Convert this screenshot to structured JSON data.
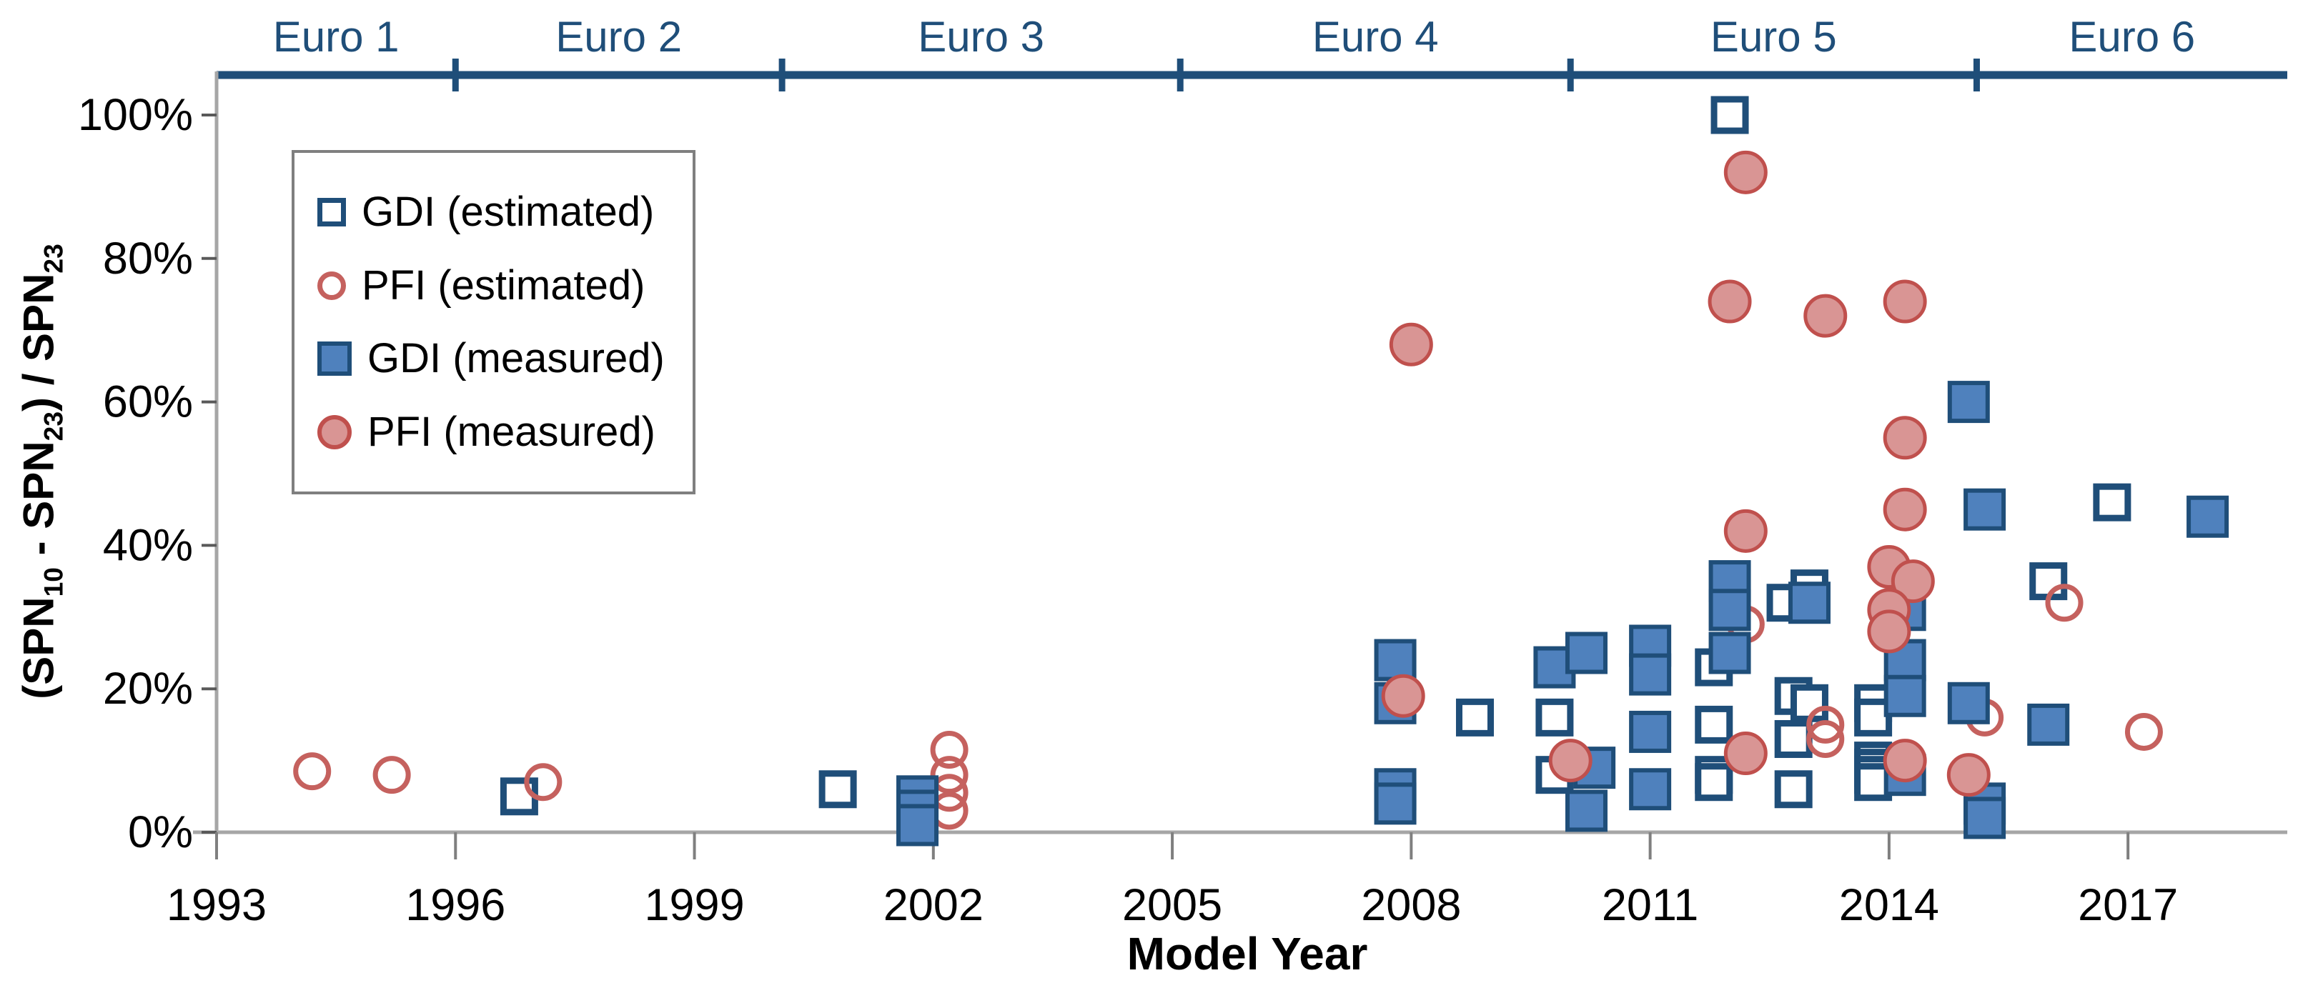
{
  "colors": {
    "navy": "#1f4e79",
    "blue_fill": "#4f81bd",
    "red_stroke": "#c0504d",
    "red_open_stroke": "#c5615e",
    "red_fill": "#d99594",
    "axis_gray": "#a6a6a6",
    "tick_gray": "#7f7f7f",
    "text_black": "#000000"
  },
  "chart_data": {
    "type": "scatter",
    "title": "",
    "xlabel": "Model Year",
    "ylabel": "(SPN10 - SPN23) / SPN23",
    "ylabel_parts": [
      {
        "text": "(SPN"
      },
      {
        "text": "10",
        "sub": true
      },
      {
        "text": " - SPN"
      },
      {
        "text": "23",
        "sub": true
      },
      {
        "text": ") / SPN"
      },
      {
        "text": "23",
        "sub": true
      }
    ],
    "xlim": [
      1993,
      2019
    ],
    "ylim": [
      0,
      100
    ],
    "grid": false,
    "legend_position": "upper-left-inside",
    "x_ticks": [
      {
        "value": 1993,
        "label": "1993"
      },
      {
        "value": 1996,
        "label": "1996"
      },
      {
        "value": 1999,
        "label": "1999"
      },
      {
        "value": 2002,
        "label": "2002"
      },
      {
        "value": 2005,
        "label": "2005"
      },
      {
        "value": 2008,
        "label": "2008"
      },
      {
        "value": 2011,
        "label": "2011"
      },
      {
        "value": 2014,
        "label": "2014"
      },
      {
        "value": 2017,
        "label": "2017"
      }
    ],
    "y_ticks": [
      {
        "value": 0,
        "label": "0%"
      },
      {
        "value": 20,
        "label": "20%"
      },
      {
        "value": 40,
        "label": "40%"
      },
      {
        "value": 60,
        "label": "60%"
      },
      {
        "value": 80,
        "label": "80%"
      },
      {
        "value": 100,
        "label": "100%"
      }
    ],
    "euro_bands": [
      {
        "label": "Euro 1",
        "from": 1993,
        "to": 1996
      },
      {
        "label": "Euro 2",
        "from": 1996,
        "to": 2000.1
      },
      {
        "label": "Euro 3",
        "from": 2000.1,
        "to": 2005.1
      },
      {
        "label": "Euro 4",
        "from": 2005.1,
        "to": 2010
      },
      {
        "label": "Euro 5",
        "from": 2010,
        "to": 2015.1
      },
      {
        "label": "Euro 6",
        "from": 2015.1,
        "to": 2019
      }
    ],
    "series": [
      {
        "name": "GDI (estimated)",
        "marker": {
          "shape": "square",
          "filled": false,
          "stroke": "#1f4e79",
          "fill": "#ffffff"
        },
        "points": [
          [
            1996.8,
            5
          ],
          [
            2000.8,
            6
          ],
          [
            2008.8,
            16
          ],
          [
            2009.8,
            16
          ],
          [
            2009.8,
            8
          ],
          [
            2011.8,
            23
          ],
          [
            2011.8,
            15
          ],
          [
            2011.8,
            8
          ],
          [
            2011.8,
            7
          ],
          [
            2012,
            100
          ],
          [
            2012.7,
            32
          ],
          [
            2013,
            34
          ],
          [
            2012.8,
            19
          ],
          [
            2013,
            18
          ],
          [
            2012.8,
            13
          ],
          [
            2012.8,
            6
          ],
          [
            2013.8,
            18
          ],
          [
            2013.8,
            16
          ],
          [
            2013.8,
            10
          ],
          [
            2013.8,
            9
          ],
          [
            2013.8,
            8
          ],
          [
            2013.8,
            7
          ],
          [
            2016,
            35
          ],
          [
            2016.8,
            46
          ]
        ]
      },
      {
        "name": "PFI (estimated)",
        "marker": {
          "shape": "circle",
          "filled": false,
          "stroke": "#c5615e",
          "fill": "none"
        },
        "points": [
          [
            1994.2,
            8.5
          ],
          [
            1995.2,
            8
          ],
          [
            1997.1,
            7
          ],
          [
            2002.2,
            11.5
          ],
          [
            2002.2,
            8
          ],
          [
            2002.2,
            5.5
          ],
          [
            2002.2,
            3
          ],
          [
            2012.2,
            29
          ],
          [
            2013.2,
            15
          ],
          [
            2013.2,
            13
          ],
          [
            2015.2,
            16
          ],
          [
            2016.2,
            32
          ],
          [
            2017.2,
            14
          ]
        ]
      },
      {
        "name": "GDI (measured)",
        "marker": {
          "shape": "square",
          "filled": true,
          "stroke": "#1f4e79",
          "fill": "#4f81bd"
        },
        "points": [
          [
            2001.8,
            5
          ],
          [
            2001.8,
            3
          ],
          [
            2001.8,
            1
          ],
          [
            2007.8,
            24
          ],
          [
            2007.8,
            18
          ],
          [
            2007.8,
            6
          ],
          [
            2007.8,
            4
          ],
          [
            2009.8,
            23
          ],
          [
            2010.2,
            25
          ],
          [
            2010.3,
            9
          ],
          [
            2010.2,
            3
          ],
          [
            2011,
            26
          ],
          [
            2011,
            22
          ],
          [
            2011,
            14
          ],
          [
            2011,
            6
          ],
          [
            2012,
            35
          ],
          [
            2012,
            31
          ],
          [
            2012,
            25
          ],
          [
            2013,
            32
          ],
          [
            2014.2,
            31
          ],
          [
            2014.2,
            24
          ],
          [
            2014.2,
            19
          ],
          [
            2014.2,
            8
          ],
          [
            2015,
            60
          ],
          [
            2015.2,
            45
          ],
          [
            2015,
            18
          ],
          [
            2015.2,
            4
          ],
          [
            2015.2,
            2
          ],
          [
            2016,
            15
          ],
          [
            2018,
            44
          ]
        ]
      },
      {
        "name": "PFI (measured)",
        "marker": {
          "shape": "circle",
          "filled": true,
          "stroke": "#c0504d",
          "fill": "#d99594"
        },
        "points": [
          [
            2008,
            68
          ],
          [
            2007.9,
            19
          ],
          [
            2010,
            10
          ],
          [
            2012,
            74
          ],
          [
            2012.2,
            92
          ],
          [
            2012.2,
            42
          ],
          [
            2012.2,
            11
          ],
          [
            2013.2,
            72
          ],
          [
            2014.2,
            74
          ],
          [
            2014.2,
            55
          ],
          [
            2014.2,
            45
          ],
          [
            2014,
            37
          ],
          [
            2014.3,
            35
          ],
          [
            2014,
            31
          ],
          [
            2014,
            28
          ],
          [
            2014.2,
            10
          ],
          [
            2015,
            8
          ]
        ]
      }
    ]
  }
}
